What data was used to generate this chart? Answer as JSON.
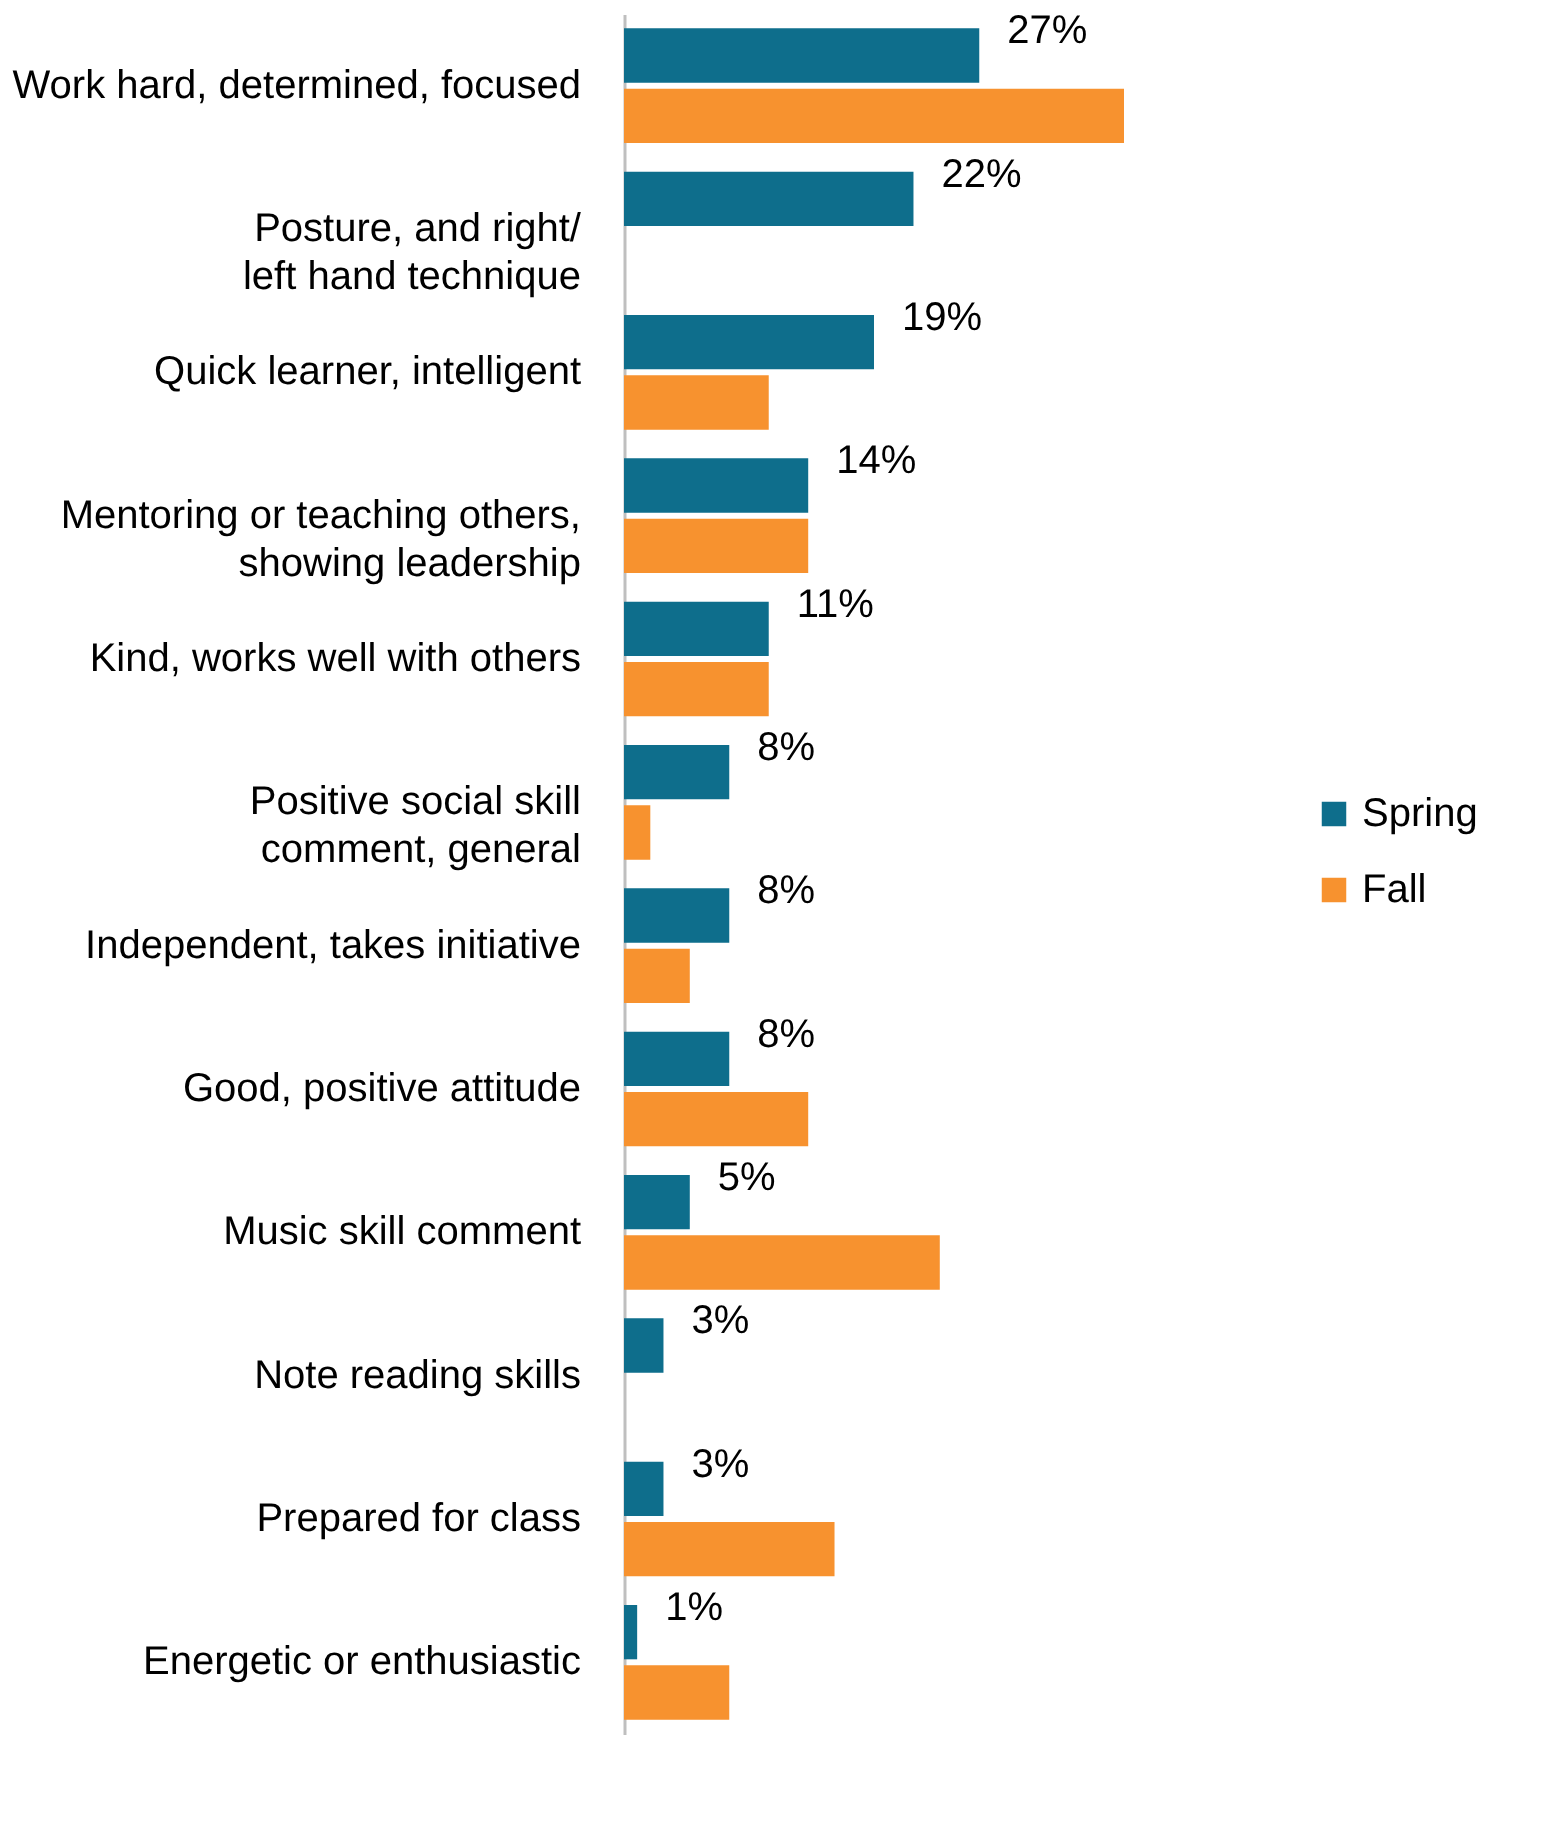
{
  "chart_data": {
    "type": "bar",
    "orientation": "horizontal",
    "legend": "right",
    "categories": [
      "Work hard, determined, focused",
      "Posture, and right/\nleft hand technique",
      "Quick learner, intelligent",
      "Mentoring or teaching others,\nshowing leadership",
      "Kind, works well with others",
      "Positive social skill\ncomment, general",
      "Independent, takes initiative",
      "Good, positive attitude",
      "Music skill comment",
      "Note reading skills",
      "Prepared for class",
      "Energetic or enthusiastic"
    ],
    "series": [
      {
        "name": "Spring",
        "color": "#0e6e8c",
        "values": [
          27,
          22,
          19,
          14,
          11,
          8,
          8,
          8,
          5,
          3,
          3,
          1
        ],
        "value_labels": [
          "27%",
          "22%",
          "19%",
          "14%",
          "11%",
          "8%",
          "8%",
          "8%",
          "5%",
          "3%",
          "3%",
          "1%"
        ]
      },
      {
        "name": "Fall",
        "color": "#f7922f",
        "values": [
          38,
          null,
          11,
          14,
          11,
          2,
          5,
          14,
          24,
          null,
          16,
          8
        ]
      }
    ]
  }
}
